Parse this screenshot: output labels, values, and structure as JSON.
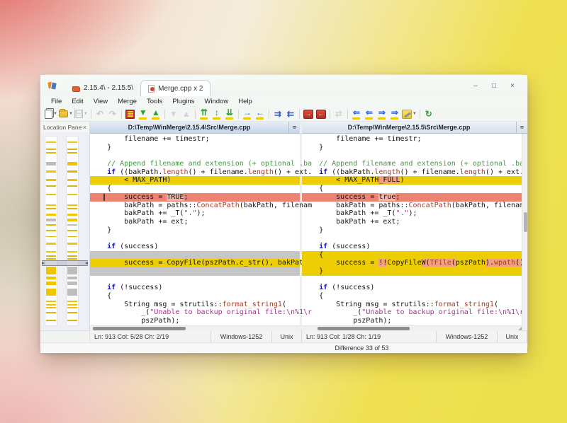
{
  "window": {
    "controls": [
      {
        "name": "minimize-button",
        "glyph": "–"
      },
      {
        "name": "maximize-button",
        "glyph": "□"
      },
      {
        "name": "close-button",
        "glyph": "×"
      }
    ]
  },
  "tabs": [
    {
      "label": "2.15.4\\ - 2.15.5\\",
      "active": false
    },
    {
      "label": "Merge.cpp x 2",
      "active": true
    }
  ],
  "menu": {
    "items": [
      "File",
      "Edit",
      "View",
      "Merge",
      "Tools",
      "Plugins",
      "Window",
      "Help"
    ]
  },
  "toolbar": {
    "items": [
      {
        "name": "new-file-button",
        "kind": "doc",
        "dropdown": true
      },
      {
        "name": "open-button",
        "kind": "folder",
        "dropdown": true
      },
      {
        "name": "save-button",
        "kind": "floppy",
        "dropdown": true,
        "disabled": true
      },
      {
        "sep": true
      },
      {
        "name": "undo-button",
        "glyph": "↶",
        "color": "#8f979e",
        "disabled": true
      },
      {
        "name": "redo-button",
        "glyph": "↷",
        "color": "#8f979e",
        "disabled": true
      },
      {
        "sep": true
      },
      {
        "name": "rescan-button",
        "kind": "reddiff"
      },
      {
        "name": "next-difference-button",
        "glyph": "▼",
        "color": "#2ca433",
        "bar": true
      },
      {
        "name": "previous-difference-button",
        "glyph": "▲",
        "color": "#2ca433",
        "bar": true
      },
      {
        "sep": true
      },
      {
        "name": "next-conflict-button",
        "glyph": "▼",
        "color": "#a9aeb3",
        "disabled": true
      },
      {
        "name": "previous-conflict-button",
        "glyph": "▲",
        "color": "#a9aeb3",
        "disabled": true
      },
      {
        "sep": true
      },
      {
        "name": "first-difference-button",
        "glyph": "⇈",
        "color": "#2ca433",
        "bar": true
      },
      {
        "name": "current-difference-button",
        "glyph": "↕",
        "color": "#2ca433",
        "bar": true
      },
      {
        "name": "last-difference-button",
        "glyph": "⇊",
        "color": "#2ca433",
        "bar": true
      },
      {
        "sep": true
      },
      {
        "name": "copy-right-button",
        "glyph": "→",
        "color": "#2b5fd9",
        "bar": true
      },
      {
        "name": "copy-left-button",
        "glyph": "←",
        "color": "#2b5fd9",
        "bar": true
      },
      {
        "sep": true
      },
      {
        "name": "copy-right-and-advance-button",
        "glyph": "⇉",
        "color": "#2b5fd9"
      },
      {
        "name": "copy-left-and-advance-button",
        "glyph": "⇇",
        "color": "#2b5fd9"
      },
      {
        "sep": true
      },
      {
        "name": "copy-all-right-button",
        "kind": "redchip",
        "glyph": "→"
      },
      {
        "name": "copy-all-left-button",
        "kind": "redchip",
        "glyph": "←"
      },
      {
        "sep": true
      },
      {
        "name": "auto-merge-button",
        "glyph": "⇄",
        "color": "#a9aeb3",
        "disabled": true
      },
      {
        "sep": true
      },
      {
        "name": "copy-left-block-button",
        "glyph": "⇐",
        "color": "#2b5fd9",
        "bar": true
      },
      {
        "name": "move-left-button",
        "glyph": "⇐",
        "color": "#2b5fd9",
        "bar": true
      },
      {
        "name": "copy-right-block-button",
        "glyph": "⇒",
        "color": "#2b5fd9",
        "bar": true
      },
      {
        "name": "move-right-button",
        "glyph": "⇒",
        "color": "#2b5fd9",
        "bar": true
      },
      {
        "name": "options-button",
        "kind": "wrench",
        "dropdown": true
      },
      {
        "sep": true
      },
      {
        "name": "refresh-button",
        "glyph": "↻",
        "color": "#2ca433"
      }
    ]
  },
  "location_pane": {
    "title": "Location Pane",
    "close_glyph": "×",
    "indicator_top_pct": 65.5,
    "bar_colors": {
      "y": "#f0c500",
      "o": "#d9b70a",
      "g": "#bdbdbd"
    },
    "bars_left": [
      [
        2.5,
        2,
        "y"
      ],
      [
        6.5,
        2,
        "o"
      ],
      [
        8.4,
        2,
        "o"
      ],
      [
        13.5,
        5,
        "g"
      ],
      [
        17.8,
        3,
        "y"
      ],
      [
        22.5,
        3,
        "y"
      ],
      [
        26,
        1.5,
        "o"
      ],
      [
        30.5,
        2,
        "y"
      ],
      [
        36,
        2,
        "y"
      ],
      [
        38,
        1.5,
        "o"
      ],
      [
        40.8,
        3,
        "y"
      ],
      [
        43.5,
        4,
        "g"
      ],
      [
        46.5,
        1.5,
        "o"
      ],
      [
        49.5,
        1.5,
        "o"
      ],
      [
        52.8,
        1.5,
        "o"
      ],
      [
        56,
        3,
        "y"
      ],
      [
        60.8,
        2,
        "y"
      ],
      [
        62.8,
        2,
        "o"
      ],
      [
        64.5,
        1.5,
        "o"
      ],
      [
        69,
        11,
        "y"
      ],
      [
        74.3,
        4,
        "y"
      ],
      [
        76.8,
        5,
        "y"
      ],
      [
        80.5,
        10,
        "y"
      ],
      [
        86.8,
        2,
        "y"
      ],
      [
        88.6,
        2,
        "y"
      ],
      [
        90.4,
        2,
        "y"
      ],
      [
        93,
        1.5,
        "o"
      ],
      [
        97,
        2,
        "o"
      ]
    ],
    "bars_right": [
      [
        2.5,
        2,
        "y"
      ],
      [
        6.5,
        2,
        "o"
      ],
      [
        8.4,
        2,
        "o"
      ],
      [
        13.5,
        5,
        "y"
      ],
      [
        17.8,
        3,
        "o"
      ],
      [
        22.5,
        3,
        "y"
      ],
      [
        26,
        1.5,
        "o"
      ],
      [
        30.5,
        2,
        "y"
      ],
      [
        36,
        2,
        "y"
      ],
      [
        38,
        1.5,
        "o"
      ],
      [
        40.8,
        3,
        "y"
      ],
      [
        43.5,
        4,
        "y"
      ],
      [
        46.5,
        1.5,
        "g"
      ],
      [
        49.5,
        1.5,
        "o"
      ],
      [
        52.8,
        1.5,
        "o"
      ],
      [
        56,
        3,
        "y"
      ],
      [
        60.8,
        2,
        "y"
      ],
      [
        62.8,
        2,
        "o"
      ],
      [
        64.5,
        1.5,
        "o"
      ],
      [
        69,
        11,
        "g"
      ],
      [
        74.3,
        4,
        "g"
      ],
      [
        76.8,
        5,
        "g"
      ],
      [
        80.5,
        10,
        "g"
      ],
      [
        86.8,
        2,
        "y"
      ],
      [
        88.6,
        2,
        "y"
      ],
      [
        90.4,
        2,
        "y"
      ],
      [
        93,
        1.5,
        "o"
      ],
      [
        97,
        2,
        "o"
      ]
    ]
  },
  "pane_menu_glyph": "=",
  "panes": [
    {
      "header": "D:\\Temp\\WinMerge\\2.15.4\\Src\\Merge.cpp",
      "status": {
        "ln": "Ln: 913",
        "col": "Col: 5/28",
        "ch": "Ch: 2/19",
        "encoding": "Windows-1252",
        "eol": "Unix"
      },
      "lines": [
        {
          "s": [
            {
              "t": "        filename += timestr;"
            }
          ]
        },
        {
          "s": [
            {
              "t": "    }"
            }
          ]
        },
        {
          "s": []
        },
        {
          "s": [
            {
              "t": "    // Append filename and extension (+ optional .ba",
              "c": "c"
            }
          ]
        },
        {
          "s": [
            {
              "t": "    "
            },
            {
              "t": "if",
              "c": "k"
            },
            {
              "t": " ((bakPath."
            },
            {
              "t": "length",
              "c": "f"
            },
            {
              "t": "() + filename."
            },
            {
              "t": "length",
              "c": "f"
            },
            {
              "t": "() + ext."
            }
          ]
        },
        {
          "b": "y",
          "s": [
            {
              "t": "        < MAX_PATH)"
            }
          ]
        },
        {
          "s": [
            {
              "t": "    {"
            }
          ]
        },
        {
          "b": "s",
          "caret": true,
          "s": [
            {
              "t": "        success = "
            },
            {
              "t": "TRUE",
              "w": true
            },
            {
              "t": ";"
            }
          ]
        },
        {
          "s": [
            {
              "t": "        bakPath = paths::"
            },
            {
              "t": "ConcatPath",
              "c": "f"
            },
            {
              "t": "(bakPath, filenam"
            }
          ]
        },
        {
          "s": [
            {
              "t": "        bakPath += _T("
            },
            {
              "t": "\".\"",
              "c": "s"
            },
            {
              "t": ");"
            }
          ]
        },
        {
          "s": [
            {
              "t": "        bakPath += ext;"
            }
          ]
        },
        {
          "s": [
            {
              "t": "    }"
            }
          ]
        },
        {
          "s": []
        },
        {
          "s": [
            {
              "t": "    "
            },
            {
              "t": "if",
              "c": "k"
            },
            {
              "t": " (success)"
            }
          ]
        },
        {
          "b": "g",
          "s": []
        },
        {
          "b": "y",
          "s": [
            {
              "t": "        success = CopyFile(pszPath.c_str(), bakPath."
            }
          ]
        },
        {
          "b": "g",
          "s": []
        },
        {
          "s": []
        },
        {
          "s": [
            {
              "t": "    "
            },
            {
              "t": "if",
              "c": "k"
            },
            {
              "t": " (!success)"
            }
          ]
        },
        {
          "s": [
            {
              "t": "    {"
            }
          ]
        },
        {
          "s": [
            {
              "t": "        String msg = strutils::"
            },
            {
              "t": "format_string1",
              "c": "f"
            },
            {
              "t": "("
            }
          ]
        },
        {
          "s": [
            {
              "t": "            _("
            },
            {
              "t": "\"Unable to backup original file:\\n%1\\r",
              "c": "s"
            }
          ]
        },
        {
          "s": [
            {
              "t": "            pszPath);"
            }
          ]
        }
      ],
      "hthumb": {
        "left_pct": 1.5,
        "width_pct": 44
      }
    },
    {
      "header": "D:\\Temp\\WinMerge\\2.15.5\\Src\\Merge.cpp",
      "status": {
        "ln": "Ln: 913",
        "col": "Col: 1/28",
        "ch": "Ch: 1/19",
        "encoding": "Windows-1252",
        "eol": "Unix"
      },
      "lines": [
        {
          "s": [
            {
              "t": "        filename += timestr;"
            }
          ]
        },
        {
          "s": [
            {
              "t": "    }"
            }
          ]
        },
        {
          "s": []
        },
        {
          "s": [
            {
              "t": "    // Append filename and extension (+ optional .ba",
              "c": "c"
            }
          ]
        },
        {
          "s": [
            {
              "t": "    "
            },
            {
              "t": "if",
              "c": "k"
            },
            {
              "t": " ((bakPath."
            },
            {
              "t": "length",
              "c": "f"
            },
            {
              "t": "() + filename."
            },
            {
              "t": "length",
              "c": "f"
            },
            {
              "t": "() + ext."
            }
          ]
        },
        {
          "b": "y",
          "s": [
            {
              "t": "        < MAX_PATH"
            },
            {
              "t": "_FULL",
              "w": true
            },
            {
              "t": ")"
            }
          ]
        },
        {
          "s": [
            {
              "t": "    {"
            }
          ]
        },
        {
          "b": "s",
          "s": [
            {
              "t": "        success = "
            },
            {
              "t": "true",
              "w": true
            },
            {
              "t": ";"
            }
          ]
        },
        {
          "s": [
            {
              "t": "        bakPath = paths::"
            },
            {
              "t": "ConcatPath",
              "c": "f"
            },
            {
              "t": "(bakPath, filenam"
            }
          ]
        },
        {
          "s": [
            {
              "t": "        bakPath += _T("
            },
            {
              "t": "\".\"",
              "c": "s"
            },
            {
              "t": ");"
            }
          ]
        },
        {
          "s": [
            {
              "t": "        bakPath += ext;"
            }
          ]
        },
        {
          "s": [
            {
              "t": "    }"
            }
          ]
        },
        {
          "s": []
        },
        {
          "s": [
            {
              "t": "    "
            },
            {
              "t": "if",
              "c": "k"
            },
            {
              "t": " (success)"
            }
          ]
        },
        {
          "b": "y",
          "s": [
            {
              "t": "    {"
            }
          ]
        },
        {
          "b": "y",
          "s": [
            {
              "t": "        success = "
            },
            {
              "t": "!!",
              "w": true
            },
            {
              "t": "CopyFile"
            },
            {
              "t": "W(",
              "w": true
            },
            {
              "t": "TFile",
              "c": "f",
              "w": true
            },
            {
              "t": "(",
              "w": true
            },
            {
              "t": "pszPath"
            },
            {
              "t": ").",
              "w": true
            },
            {
              "t": "wpath",
              "c": "f",
              "w": true
            },
            {
              "t": "()",
              "w": true
            }
          ]
        },
        {
          "b": "y",
          "s": [
            {
              "t": "    }"
            }
          ]
        },
        {
          "s": []
        },
        {
          "s": [
            {
              "t": "    "
            },
            {
              "t": "if",
              "c": "k"
            },
            {
              "t": " (!success)"
            }
          ]
        },
        {
          "s": [
            {
              "t": "    {"
            }
          ]
        },
        {
          "s": [
            {
              "t": "        String msg = strutils::"
            },
            {
              "t": "format_string1",
              "c": "f"
            },
            {
              "t": "("
            }
          ]
        },
        {
          "s": [
            {
              "t": "            _("
            },
            {
              "t": "\"Unable to backup original file:\\n%1\\r",
              "c": "s"
            }
          ]
        },
        {
          "s": [
            {
              "t": "            pszPath);"
            }
          ]
        }
      ],
      "hthumb": {
        "left_pct": 7,
        "width_pct": 42
      },
      "vthumb": {
        "top_pct": 40,
        "height_pct": 10
      }
    }
  ],
  "status_bar": {
    "difference": "Difference 33 of 53"
  },
  "colors": {
    "diff_yellow": "#edce05",
    "diff_selected": "#ee8374",
    "diff_missing": "#c6c6c6",
    "word_on_yellow": "#f2a07e",
    "word_on_selected": "#f6b2a4"
  }
}
